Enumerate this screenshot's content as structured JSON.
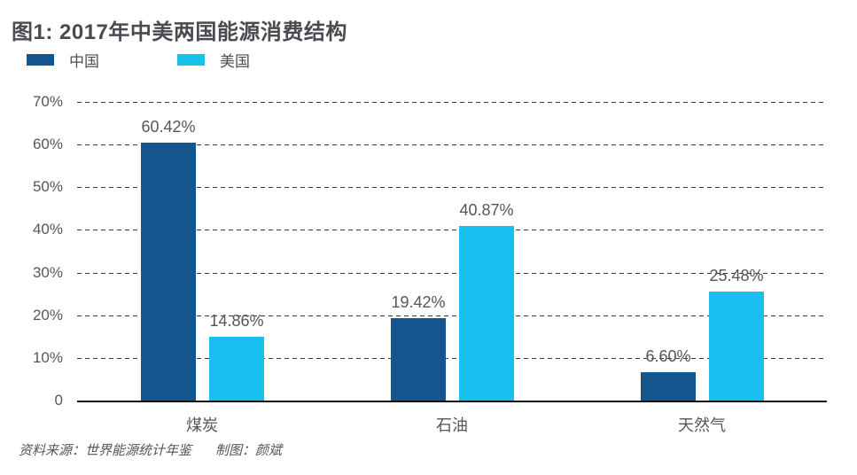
{
  "title": "图1: 2017年中美两国能源消费结构",
  "legend": [
    {
      "label": "中国",
      "color": "#15568F"
    },
    {
      "label": "美国",
      "color": "#18BFEF"
    }
  ],
  "footer": {
    "source_label": "资料来源：世界能源统计年鉴",
    "author_label": "制图：颜斌"
  },
  "colors": {
    "china_bar": "#15568F",
    "us_bar": "#18BFEF",
    "gridline": "#3a3a3a",
    "axis_baseline": "#141414",
    "text_gray": "#55555b",
    "title_gray": "#4a4a51"
  },
  "chart_data": {
    "type": "bar",
    "title": "图1: 2017年中美两国能源消费结构",
    "categories": [
      "煤炭",
      "石油",
      "天然气"
    ],
    "series": [
      {
        "name": "中国",
        "color": "#15568F",
        "values": [
          60.42,
          19.42,
          6.6
        ]
      },
      {
        "name": "美国",
        "color": "#18BFEF",
        "values": [
          14.86,
          40.87,
          25.48
        ]
      }
    ],
    "value_labels": [
      [
        "60.42%",
        "19.42%",
        "6.60%"
      ],
      [
        "14.86%",
        "40.87%",
        "25.48%"
      ]
    ],
    "y_ticks": [
      "70%",
      "60%",
      "50%",
      "40%",
      "30%",
      "20%",
      "10%",
      "0"
    ],
    "ylim": [
      0,
      70
    ],
    "grid": "dashed-horizontal",
    "legend_position": "top-left",
    "xlabel": "",
    "ylabel": ""
  }
}
